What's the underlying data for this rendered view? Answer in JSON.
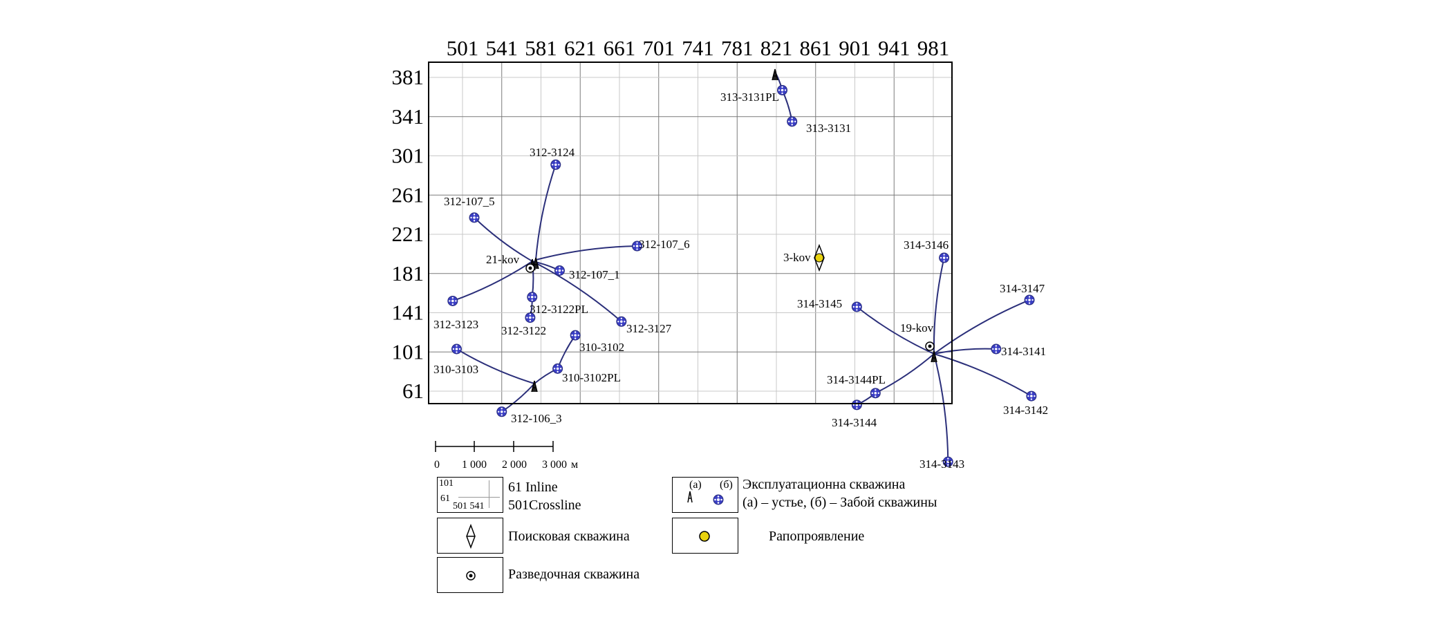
{
  "map": {
    "crossline_ticks": [
      "501",
      "541",
      "581",
      "621",
      "661",
      "701",
      "741",
      "781",
      "821",
      "861",
      "901",
      "941",
      "981"
    ],
    "inline_ticks": [
      "381",
      "341",
      "301",
      "261",
      "221",
      "181",
      "141",
      "101",
      "61"
    ],
    "colors": {
      "trajectory": "#2b2f7a",
      "well_fill": "#3a3ec4",
      "grid_light": "#c8c8c8",
      "grid_dark": "#7a7a7a",
      "rapo": "#e8d20f"
    }
  },
  "wells": [
    {
      "label": "313-3131PL",
      "cross": 827,
      "inline": 368
    },
    {
      "label": "313-3131",
      "cross": 837,
      "inline": 336
    },
    {
      "label": "312-3124",
      "cross": 596,
      "inline": 292
    },
    {
      "label": "312-107_5",
      "cross": 513,
      "inline": 238
    },
    {
      "label": "312-107_6",
      "cross": 679,
      "inline": 209
    },
    {
      "label": "312-107_1",
      "cross": 600,
      "inline": 184
    },
    {
      "label": "312-3122PL",
      "cross": 572,
      "inline": 157
    },
    {
      "label": "312-3122",
      "cross": 570,
      "inline": 136
    },
    {
      "label": "312-3123",
      "cross": 491,
      "inline": 153
    },
    {
      "label": "312-3127",
      "cross": 663,
      "inline": 132
    },
    {
      "label": "310-3102",
      "cross": 616,
      "inline": 118
    },
    {
      "label": "310-3102PL",
      "cross": 598,
      "inline": 84
    },
    {
      "label": "310-3103",
      "cross": 495,
      "inline": 104
    },
    {
      "label": "312-106_3",
      "cross": 541,
      "inline": 40
    },
    {
      "label": "314-3146",
      "cross": 992,
      "inline": 197
    },
    {
      "label": "314-3147",
      "cross": 1079,
      "inline": 154
    },
    {
      "label": "314-3145",
      "cross": 903,
      "inline": 147
    },
    {
      "label": "314-3141",
      "cross": 1045,
      "inline": 104
    },
    {
      "label": "314-3144PL",
      "cross": 922,
      "inline": 59
    },
    {
      "label": "314-3144",
      "cross": 903,
      "inline": 47
    },
    {
      "label": "314-3142",
      "cross": 1081,
      "inline": 56
    },
    {
      "label": "314-3143",
      "cross": 996,
      "inline": -11
    }
  ],
  "named_points": {
    "kov21": {
      "label": "21-kov"
    },
    "kov3": {
      "label": "3-kov"
    },
    "kov19": {
      "label": "19-kov"
    }
  },
  "scale_bar": {
    "ticks": [
      "0",
      "1 000",
      "2 000",
      "3 000"
    ],
    "unit": "м"
  },
  "legend": {
    "inline_cross": {
      "mini_top": "101",
      "mini_bottom": "61",
      "mini_cross": "501 541",
      "line1": "61 Inline",
      "line2": "501Crossline"
    },
    "search_well": "Поисковая скважина",
    "exploration_well": "Разведочная скважина",
    "production_a": "(a)",
    "production_b": "(б)",
    "production_line1": "Эксплуатационна скважина",
    "production_line2": "(а) – устье, (б) – Забой скважины",
    "rapo": "Рапопроявление"
  }
}
